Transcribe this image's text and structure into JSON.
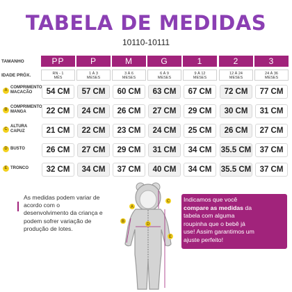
{
  "title": "TABELA DE MEDIDAS",
  "subtitle": "10110-10111",
  "header_label": "TAMANHO",
  "age_label": "IDADE PRÓX.",
  "sizes": [
    "PP",
    "P",
    "M",
    "G",
    "1",
    "2",
    "3"
  ],
  "ages": [
    [
      "RN - 1",
      "MÊS"
    ],
    [
      "1 À 3",
      "MESES"
    ],
    [
      "3 À 6",
      "MESES"
    ],
    [
      "6 À 9",
      "MESES"
    ],
    [
      "9 À 12",
      "MESES"
    ],
    [
      "12 À 24",
      "MESES"
    ],
    [
      "24 À 36",
      "MESES"
    ]
  ],
  "rows": [
    {
      "letter": "A",
      "label": [
        "COMPRIMENTO",
        "MACACÃO"
      ],
      "values": [
        "54 CM",
        "57 CM",
        "60 CM",
        "63 CM",
        "67 CM",
        "72 CM",
        "77 CM"
      ]
    },
    {
      "letter": "B",
      "label": [
        "COMPRIMENTO",
        "MANGA"
      ],
      "values": [
        "22 CM",
        "24 CM",
        "26 CM",
        "27 CM",
        "29 CM",
        "30 CM",
        "31 CM"
      ]
    },
    {
      "letter": "C",
      "label": [
        "ALTURA",
        "CAPUZ"
      ],
      "values": [
        "21 CM",
        "22 CM",
        "23 CM",
        "24 CM",
        "25 CM",
        "26 CM",
        "27 CM"
      ]
    },
    {
      "letter": "D",
      "label": [
        "BUSTO"
      ],
      "values": [
        "26 CM",
        "27 CM",
        "29 CM",
        "31 CM",
        "34 CM",
        "35.5 CM",
        "37 CM"
      ]
    },
    {
      "letter": "E",
      "label": [
        "TRONCO"
      ],
      "values": [
        "32 CM",
        "34 CM",
        "37 CM",
        "40 CM",
        "34 CM",
        "35.5 CM",
        "37 CM"
      ]
    }
  ],
  "note": [
    "As medidas podem variar de",
    "acordo com o",
    "desenvolvimento da criança e",
    "podem sofrer variação de",
    "produção de lotes."
  ],
  "promo": {
    "line1_a": "Indicamos que você",
    "line2_bold": "compare as medidas",
    "line2_b": " da",
    "line3": "tabela com alguma",
    "line4": "roupinha que o bebê já",
    "line5": "use! Assim garantimos um",
    "line6": "ajuste perfeito!"
  },
  "figure_letters": [
    "A",
    "B",
    "C",
    "D",
    "E"
  ],
  "colors": {
    "title": "#8b3fb3",
    "size_header": "#a1237b",
    "badge": "#f3d11e",
    "promo_bg": "#a1237b"
  }
}
